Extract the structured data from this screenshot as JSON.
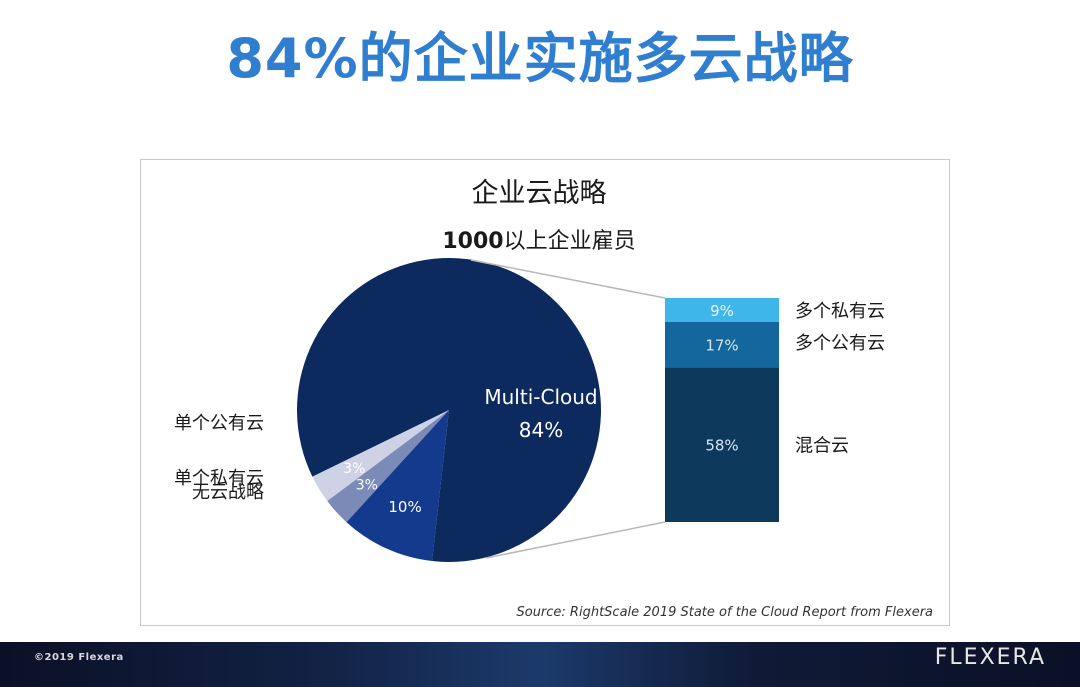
{
  "slide": {
    "title": "84%的企业实施多云战略"
  },
  "chart_data": {
    "type": "pie",
    "title": "企业云战略",
    "subtitle_number": "1000",
    "subtitle_text": "以上企业雇员",
    "slices": [
      {
        "label": "无云战略",
        "value": 3,
        "value_label": "3%",
        "color": "#cdd2e4"
      },
      {
        "label": "单个私有云",
        "value": 3,
        "value_label": "3%",
        "color": "#7c8ab8"
      },
      {
        "label": "单个公有云",
        "value": 10,
        "value_label": "10%",
        "color": "#133a8c"
      },
      {
        "label": "Multi-Cloud",
        "value": 84,
        "value_label": "84%",
        "color": "#0c2a5e"
      }
    ],
    "breakdown": {
      "of": "Multi-Cloud",
      "segments": [
        {
          "label": "多个私有云",
          "value": 9,
          "value_label": "9%",
          "color": "#3fb6ea"
        },
        {
          "label": "多个公有云",
          "value": 17,
          "value_label": "17%",
          "color": "#14679c"
        },
        {
          "label": "混合云",
          "value": 58,
          "value_label": "58%",
          "color": "#0d3a5c"
        }
      ]
    },
    "source": "Source: RightScale 2019 State of the Cloud Report from Flexera"
  },
  "footer": {
    "copyright": "©2019 Flexera",
    "logo": "FLEXERA"
  }
}
